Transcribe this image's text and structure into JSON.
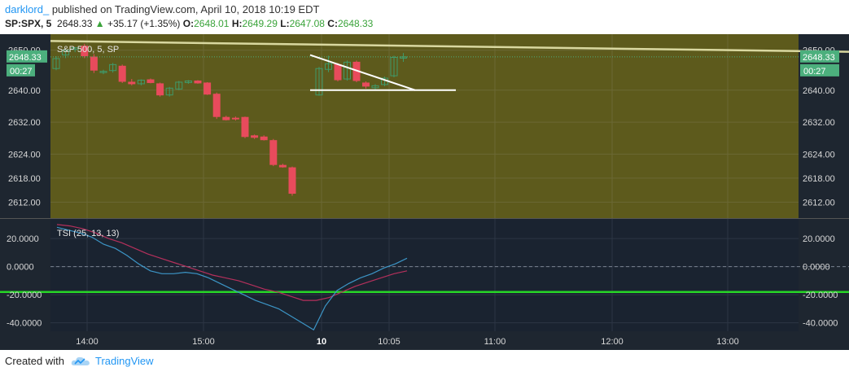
{
  "header": {
    "author": "darklord_",
    "published": "published on TradingView.com, April 10, 2018 10:19 EDT",
    "symbol": "SP:SPX, 5",
    "last": "2648.33",
    "change_arrow": "▲",
    "change": "+35.17 (+1.35%)",
    "o_label": "O:",
    "o_val": "2648.01",
    "h_label": "H:",
    "h_val": "2649.29",
    "l_label": "L:",
    "l_val": "2647.08",
    "c_label": "C:",
    "c_val": "2648.33"
  },
  "footer": {
    "created_with": "Created with",
    "brand": "TradingView"
  },
  "colors": {
    "price_bg": "#5d5a1c",
    "ind_bg": "#1a2330",
    "up": "#2e6b4a",
    "down": "#e84b5c",
    "tsi": "#3c95c6",
    "signal": "#b5305c",
    "level": "#27d627",
    "trend": "#d9d8a0"
  },
  "chart_data": [
    {
      "type": "candlestick",
      "title": "S&P 500, 5, SP",
      "price_tag": "2648.33",
      "time_tag": "00:27",
      "ylim": [
        2608,
        2654
      ],
      "yticks": [
        "2650.00",
        "2640.00",
        "2632.00",
        "2624.00",
        "2618.00",
        "2612.00"
      ],
      "ytick_values": [
        2650,
        2640,
        2632,
        2624,
        2618,
        2612
      ],
      "xticks": [
        "14:00",
        "15:00",
        "10",
        "10:05",
        "11:00",
        "12:00",
        "13:00"
      ],
      "candles": [
        {
          "o": 2645.4,
          "h": 2648.5,
          "l": 2645.0,
          "c": 2647.9
        },
        {
          "o": 2648.8,
          "h": 2650.2,
          "l": 2648.0,
          "c": 2650.0
        },
        {
          "o": 2650.2,
          "h": 2650.8,
          "l": 2649.5,
          "c": 2650.6
        },
        {
          "o": 2651.0,
          "h": 2651.6,
          "l": 2648.0,
          "c": 2648.6
        },
        {
          "o": 2648.3,
          "h": 2649.0,
          "l": 2644.3,
          "c": 2645.0
        },
        {
          "o": 2644.4,
          "h": 2645.1,
          "l": 2644.0,
          "c": 2644.7
        },
        {
          "o": 2644.9,
          "h": 2646.8,
          "l": 2644.4,
          "c": 2646.4
        },
        {
          "o": 2646.0,
          "h": 2646.4,
          "l": 2641.8,
          "c": 2642.2
        },
        {
          "o": 2642.0,
          "h": 2642.8,
          "l": 2641.2,
          "c": 2641.6
        },
        {
          "o": 2641.6,
          "h": 2642.7,
          "l": 2641.2,
          "c": 2642.5
        },
        {
          "o": 2642.6,
          "h": 2642.9,
          "l": 2641.7,
          "c": 2641.9
        },
        {
          "o": 2641.6,
          "h": 2641.9,
          "l": 2638.4,
          "c": 2638.8
        },
        {
          "o": 2638.8,
          "h": 2640.8,
          "l": 2638.4,
          "c": 2640.5
        },
        {
          "o": 2640.3,
          "h": 2642.3,
          "l": 2640.0,
          "c": 2642.0
        },
        {
          "o": 2641.9,
          "h": 2642.5,
          "l": 2641.6,
          "c": 2642.3
        },
        {
          "o": 2642.3,
          "h": 2642.5,
          "l": 2641.6,
          "c": 2641.8
        },
        {
          "o": 2641.8,
          "h": 2642.0,
          "l": 2638.8,
          "c": 2639.0
        },
        {
          "o": 2639.0,
          "h": 2639.4,
          "l": 2632.8,
          "c": 2633.4
        },
        {
          "o": 2633.2,
          "h": 2633.6,
          "l": 2632.4,
          "c": 2632.6
        },
        {
          "o": 2633.0,
          "h": 2633.4,
          "l": 2632.4,
          "c": 2632.8
        },
        {
          "o": 2633.2,
          "h": 2633.4,
          "l": 2628.0,
          "c": 2628.4
        },
        {
          "o": 2628.6,
          "h": 2628.9,
          "l": 2627.8,
          "c": 2628.2
        },
        {
          "o": 2628.3,
          "h": 2628.7,
          "l": 2627.4,
          "c": 2627.6
        },
        {
          "o": 2627.4,
          "h": 2627.8,
          "l": 2621.0,
          "c": 2621.4
        },
        {
          "o": 2621.2,
          "h": 2621.6,
          "l": 2620.6,
          "c": 2620.8
        },
        {
          "o": 2620.6,
          "h": 2620.9,
          "l": 2613.6,
          "c": 2614.2
        },
        {
          "o": 2638.8,
          "h": 2645.8,
          "l": 2638.6,
          "c": 2645.4
        },
        {
          "o": 2645.2,
          "h": 2648.6,
          "l": 2644.5,
          "c": 2646.6
        },
        {
          "o": 2646.4,
          "h": 2646.8,
          "l": 2642.2,
          "c": 2642.6
        },
        {
          "o": 2642.8,
          "h": 2647.4,
          "l": 2642.4,
          "c": 2647.0
        },
        {
          "o": 2647.0,
          "h": 2647.4,
          "l": 2642.0,
          "c": 2642.4
        },
        {
          "o": 2641.8,
          "h": 2642.2,
          "l": 2640.4,
          "c": 2641.0
        },
        {
          "o": 2640.6,
          "h": 2641.5,
          "l": 2640.0,
          "c": 2641.1
        },
        {
          "o": 2641.4,
          "h": 2643.4,
          "l": 2641.0,
          "c": 2643.0
        },
        {
          "o": 2643.6,
          "h": 2648.6,
          "l": 2643.2,
          "c": 2648.2
        },
        {
          "o": 2648.01,
          "h": 2649.29,
          "l": 2647.08,
          "c": 2648.33
        }
      ]
    },
    {
      "type": "line",
      "title": "TSI (25, 13, 13)",
      "ylim": [
        -46,
        34
      ],
      "yticks": [
        "20.0000",
        "0.0000",
        "-20.0000",
        "-40.0000"
      ],
      "ytick_values": [
        20,
        0,
        -20,
        -40
      ],
      "level": -18,
      "series": [
        {
          "values": [
            30,
            29,
            27,
            24,
            20,
            17,
            13,
            9,
            6,
            3,
            0,
            -3,
            -6,
            -8,
            -10,
            -13,
            -16,
            -18,
            -21,
            -24,
            -24,
            -22,
            -18,
            -14,
            -11,
            -8,
            -5,
            -3
          ]
        },
        {
          "values": [
            28,
            26,
            24,
            21,
            16,
            13,
            8,
            2,
            -3,
            -5,
            -5,
            -4,
            -5,
            -8,
            -12,
            -16,
            -20,
            -24,
            -27,
            -30,
            -35,
            -40,
            -45,
            -28,
            -17,
            -12,
            -8,
            -5,
            -1,
            2,
            6
          ]
        }
      ]
    }
  ]
}
